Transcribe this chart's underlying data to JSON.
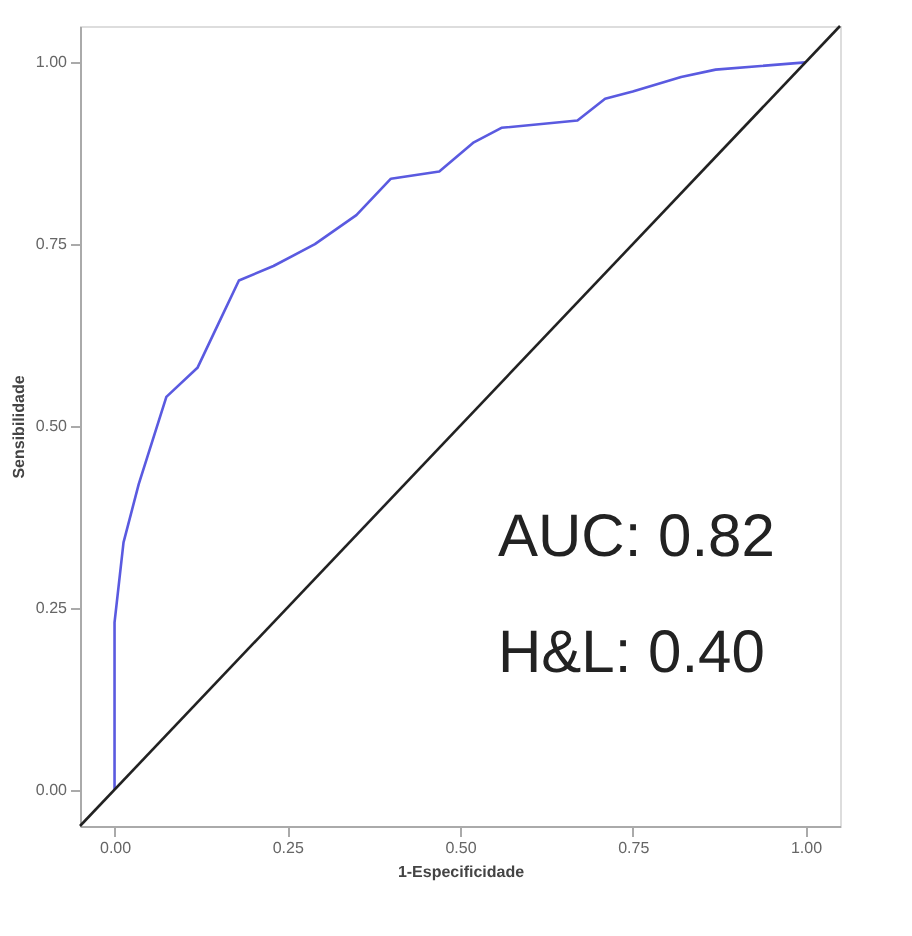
{
  "chart_data": {
    "type": "line",
    "xlabel": "1-Especificidade",
    "ylabel": "Sensibilidade",
    "xlim": [
      -0.05,
      1.05
    ],
    "ylim": [
      -0.05,
      1.05
    ],
    "xticks": [
      {
        "value": 0,
        "label": "0.00"
      },
      {
        "value": 0.25,
        "label": "0.25"
      },
      {
        "value": 0.5,
        "label": "0.50"
      },
      {
        "value": 0.75,
        "label": "0.75"
      },
      {
        "value": 1,
        "label": "1.00"
      }
    ],
    "yticks": [
      {
        "value": 0,
        "label": "0.00"
      },
      {
        "value": 0.25,
        "label": "0.25"
      },
      {
        "value": 0.5,
        "label": "0.50"
      },
      {
        "value": 0.75,
        "label": "0.75"
      },
      {
        "value": 1,
        "label": "1.00"
      }
    ],
    "grid": false,
    "marker": "none",
    "line_style": "solid",
    "series": [
      {
        "color": "#5a5ae0",
        "x": [
          0,
          0,
          0,
          0.013,
          0.035,
          0.075,
          0.12,
          0.15,
          0.18,
          0.23,
          0.29,
          0.35,
          0.4,
          0.47,
          0.52,
          0.56,
          0.67,
          0.71,
          0.75,
          0.82,
          0.87,
          1.0
        ],
        "values": [
          0,
          0.02,
          0.23,
          0.34,
          0.42,
          0.54,
          0.58,
          0.64,
          0.7,
          0.72,
          0.75,
          0.79,
          0.84,
          0.85,
          0.89,
          0.91,
          0.92,
          0.95,
          0.96,
          0.98,
          0.99,
          1.0
        ]
      },
      {
        "color": "#222222",
        "x": [
          -0.05,
          1.05
        ],
        "values": [
          -0.05,
          1.05
        ]
      }
    ],
    "annotations": [
      "AUC: 0.82",
      "H&L: 0.40"
    ]
  }
}
